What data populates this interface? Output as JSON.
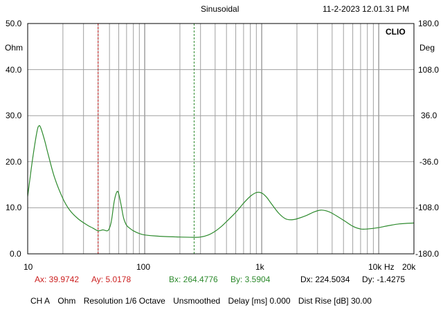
{
  "header": {
    "mode": "Sinusoidal",
    "datetime": "11-2-2023 12.01.31 PM"
  },
  "brand": "CLIO",
  "left_axis": {
    "unit": "Ohm",
    "ticks": [
      "50.0",
      "40.0",
      "30.0",
      "20.0",
      "10.0",
      "0.0"
    ]
  },
  "right_axis": {
    "unit": "Deg",
    "ticks": [
      "180.0",
      "108.0",
      "36.0",
      "-36.0",
      "-108.0",
      "-180.0"
    ]
  },
  "x_axis": {
    "ticks": [
      "10",
      "100",
      "1k",
      "10k",
      "20k"
    ],
    "unit": "Hz"
  },
  "cursors": {
    "ax": "Ax: 39.9742",
    "ay": "Ay: 5.0178",
    "bx": "Bx: 264.4776",
    "by": "By: 3.5904",
    "dx": "Dx: 224.5034",
    "dy": "Dy: -1.4275"
  },
  "footer": {
    "channel": "CH A",
    "unit": "Ohm",
    "resolution": "Resolution 1/6 Octave",
    "smoothing": "Unsmoothed",
    "delay": "Delay [ms] 0.000",
    "dist_rise": "Dist Rise [dB] 30.00"
  },
  "colors": {
    "curve": "#2d8a2d",
    "cursor_a": "#cc2020",
    "cursor_b": "#2d8a2d",
    "grid": "#a0a0a0"
  },
  "chart_data": {
    "type": "line",
    "x_scale": "log",
    "xlim": [
      10,
      20000
    ],
    "ylim": [
      0,
      50
    ],
    "y2lim": [
      -180,
      180
    ],
    "grid": true,
    "cursor_a_x": 39.9742,
    "cursor_b_x": 264.4776,
    "series": [
      {
        "x": [
          10,
          11,
          12,
          12.5,
          13,
          14,
          15,
          17,
          20,
          23,
          27,
          32,
          36,
          40,
          44,
          48,
          50,
          52,
          55,
          58,
          60,
          63,
          66,
          70,
          75,
          80,
          90,
          100,
          120,
          150,
          200,
          264,
          300,
          350,
          400,
          450,
          500,
          600,
          700,
          800,
          900,
          1000,
          1100,
          1200,
          1400,
          1600,
          1800,
          2000,
          2400,
          2800,
          3200,
          3600,
          4000,
          5000,
          6000,
          7000,
          8000,
          10000,
          12000,
          15000,
          20000
        ],
        "y": [
          12.5,
          20.5,
          26.5,
          27.8,
          27.2,
          24.5,
          21.5,
          16.5,
          12.0,
          9.4,
          7.6,
          6.3,
          5.6,
          5.0,
          5.2,
          5.0,
          5.6,
          7.2,
          11.5,
          13.5,
          13.0,
          10.5,
          7.8,
          6.2,
          5.5,
          5.0,
          4.4,
          4.1,
          3.9,
          3.75,
          3.65,
          3.59,
          3.65,
          4.1,
          4.9,
          5.9,
          7.0,
          9.0,
          11.0,
          12.5,
          13.3,
          13.2,
          12.3,
          11.0,
          8.8,
          7.6,
          7.4,
          7.6,
          8.3,
          9.1,
          9.5,
          9.3,
          8.8,
          7.3,
          6.0,
          5.4,
          5.4,
          5.7,
          6.1,
          6.5,
          6.7
        ]
      }
    ]
  }
}
